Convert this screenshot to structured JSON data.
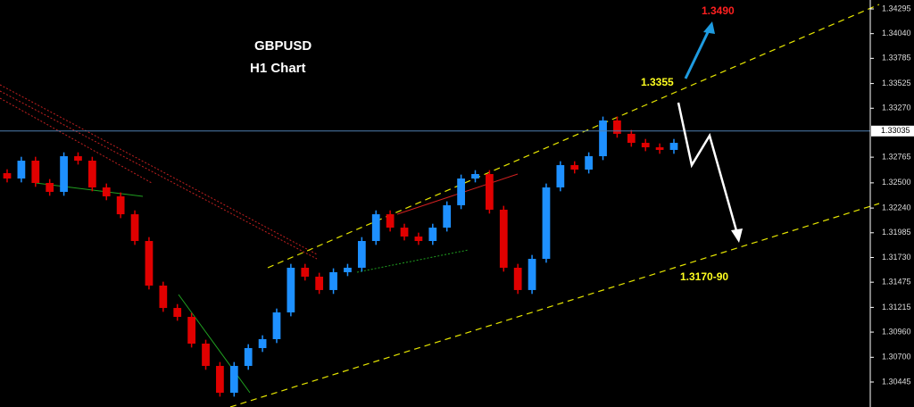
{
  "chart_data": {
    "type": "candlestick",
    "title": "GBPUSD",
    "subtitle": "H1 Chart",
    "annotations": [
      "1.3490",
      "1.3355",
      "1.3170-90"
    ],
    "current_price": 1.33035,
    "up_color": "#1e90ff",
    "down_color": "#e00000",
    "ylim": [
      1.30187,
      1.34387
    ],
    "yticks": [
      1.34295,
      {
        "value": 1.3404,
        "label": "1.34040"
      },
      1.33785,
      1.33525,
      {
        "value": 1.3327,
        "label": "1.33270"
      },
      1.32765,
      {
        "value": 1.325,
        "label": "1.32500"
      },
      {
        "value": 1.3224,
        "label": "1.32240"
      },
      1.31985,
      {
        "value": 1.3173,
        "label": "1.31730"
      },
      1.31475,
      1.31215,
      {
        "value": 1.3096,
        "label": "1.30960"
      },
      {
        "value": 1.307,
        "label": "1.30700"
      },
      1.30445
    ],
    "open": [
      1.326,
      1.32545,
      1.32729,
      1.32499,
      1.32407,
      1.32775,
      1.32729,
      1.32453,
      1.32361,
      1.32176,
      1.319,
      1.3144,
      1.31209,
      1.31117,
      1.30841,
      1.30611,
      1.30334,
      1.30611,
      1.30795,
      1.30887,
      1.31163,
      1.31624,
      1.31532,
      1.31394,
      1.31578,
      1.31624,
      1.319,
      1.32176,
      1.32038,
      1.31946,
      1.319,
      1.32038,
      1.32269,
      1.32545,
      1.32591,
      1.32223,
      1.31624,
      1.31394,
      1.31716,
      1.32453,
      1.32683,
      1.32637,
      1.32775,
      1.33144,
      1.33006,
      1.32913,
      1.32867,
      1.3284
    ],
    "high": [
      1.3264,
      1.32769,
      1.32769,
      1.32539,
      1.32815,
      1.32815,
      1.32769,
      1.32493,
      1.32401,
      1.32216,
      1.3194,
      1.3148,
      1.31249,
      1.31157,
      1.30881,
      1.30651,
      1.30651,
      1.30835,
      1.30927,
      1.31203,
      1.31664,
      1.31664,
      1.31572,
      1.31618,
      1.31664,
      1.3194,
      1.32216,
      1.32216,
      1.32078,
      1.31986,
      1.32078,
      1.32309,
      1.32585,
      1.32631,
      1.32631,
      1.32263,
      1.31664,
      1.31756,
      1.32493,
      1.32723,
      1.32723,
      1.32815,
      1.33184,
      1.33184,
      1.33046,
      1.32953,
      1.32907,
      1.32953
    ],
    "low": [
      1.32505,
      1.32505,
      1.32459,
      1.32367,
      1.32367,
      1.32689,
      1.32413,
      1.32321,
      1.32136,
      1.3186,
      1.314,
      1.31169,
      1.31077,
      1.30801,
      1.30571,
      1.30294,
      1.30294,
      1.30571,
      1.30755,
      1.30847,
      1.31123,
      1.31492,
      1.31354,
      1.31354,
      1.31538,
      1.31584,
      1.3186,
      1.31998,
      1.31906,
      1.3186,
      1.3186,
      1.31998,
      1.32229,
      1.32505,
      1.32183,
      1.31584,
      1.31354,
      1.31354,
      1.31676,
      1.32413,
      1.32597,
      1.32597,
      1.32735,
      1.32966,
      1.32873,
      1.32827,
      1.328,
      1.328
    ],
    "close": [
      1.32545,
      1.32729,
      1.32499,
      1.32407,
      1.32775,
      1.32729,
      1.32453,
      1.32361,
      1.32176,
      1.319,
      1.3144,
      1.31209,
      1.31117,
      1.30841,
      1.30611,
      1.30334,
      1.30611,
      1.30795,
      1.30887,
      1.31163,
      1.31624,
      1.31532,
      1.31394,
      1.31578,
      1.31624,
      1.319,
      1.32176,
      1.32038,
      1.31946,
      1.319,
      1.32038,
      1.32269,
      1.32545,
      1.32591,
      1.32223,
      1.31624,
      1.31394,
      1.31716,
      1.32453,
      1.32683,
      1.32637,
      1.32775,
      1.33144,
      1.33006,
      1.32913,
      1.32867,
      1.3284,
      1.32913
    ]
  }
}
